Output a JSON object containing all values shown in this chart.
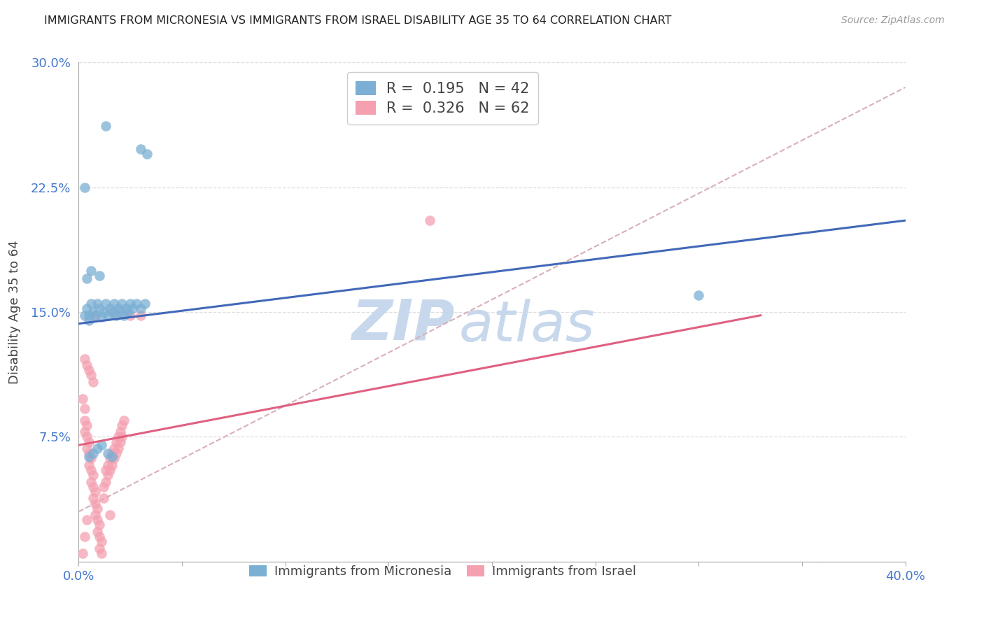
{
  "title": "IMMIGRANTS FROM MICRONESIA VS IMMIGRANTS FROM ISRAEL DISABILITY AGE 35 TO 64 CORRELATION CHART",
  "source": "Source: ZipAtlas.com",
  "ylabel": "Disability Age 35 to 64",
  "xlim": [
    0.0,
    0.4
  ],
  "ylim": [
    0.0,
    0.3
  ],
  "yticks": [
    0.0,
    0.075,
    0.15,
    0.225,
    0.3
  ],
  "ytick_labels": [
    "",
    "7.5%",
    "15.0%",
    "22.5%",
    "30.0%"
  ],
  "xtick_labels": [
    "0.0%",
    "",
    "",
    "",
    "",
    "",
    "",
    "",
    "40.0%"
  ],
  "xticks": [
    0.0,
    0.05,
    0.1,
    0.15,
    0.2,
    0.25,
    0.3,
    0.35,
    0.4
  ],
  "blue_R": 0.195,
  "blue_N": 42,
  "pink_R": 0.326,
  "pink_N": 62,
  "blue_color": "#7BAFD4",
  "pink_color": "#F4A0B0",
  "blue_line_color": "#4169B8",
  "pink_line_color": "#E06080",
  "dashed_line_color": "#D8B0B8",
  "watermark_color": "#C8D8EC",
  "background_color": "#FFFFFF",
  "grid_color": "#DDDDDD",
  "label_color": "#4477CC",
  "axis_color": "#AAAAAA",
  "blue_scatter": [
    [
      0.003,
      0.148
    ],
    [
      0.004,
      0.152
    ],
    [
      0.005,
      0.145
    ],
    [
      0.006,
      0.155
    ],
    [
      0.007,
      0.15
    ],
    [
      0.008,
      0.148
    ],
    [
      0.009,
      0.155
    ],
    [
      0.01,
      0.152
    ],
    [
      0.011,
      0.147
    ],
    [
      0.012,
      0.15
    ],
    [
      0.013,
      0.155
    ],
    [
      0.014,
      0.148
    ],
    [
      0.015,
      0.152
    ],
    [
      0.016,
      0.15
    ],
    [
      0.017,
      0.155
    ],
    [
      0.018,
      0.148
    ],
    [
      0.019,
      0.152
    ],
    [
      0.02,
      0.15
    ],
    [
      0.021,
      0.155
    ],
    [
      0.022,
      0.148
    ],
    [
      0.023,
      0.152
    ],
    [
      0.024,
      0.15
    ],
    [
      0.025,
      0.155
    ],
    [
      0.026,
      0.152
    ],
    [
      0.028,
      0.155
    ],
    [
      0.03,
      0.152
    ],
    [
      0.032,
      0.155
    ],
    [
      0.004,
      0.17
    ],
    [
      0.006,
      0.175
    ],
    [
      0.01,
      0.172
    ],
    [
      0.005,
      0.063
    ],
    [
      0.007,
      0.065
    ],
    [
      0.009,
      0.068
    ],
    [
      0.011,
      0.07
    ],
    [
      0.014,
      0.065
    ],
    [
      0.016,
      0.063
    ],
    [
      0.003,
      0.225
    ],
    [
      0.013,
      0.262
    ],
    [
      0.03,
      0.248
    ],
    [
      0.033,
      0.245
    ],
    [
      0.005,
      0.148
    ],
    [
      0.3,
      0.16
    ]
  ],
  "pink_scatter": [
    [
      0.002,
      0.098
    ],
    [
      0.003,
      0.092
    ],
    [
      0.003,
      0.085
    ],
    [
      0.003,
      0.078
    ],
    [
      0.004,
      0.082
    ],
    [
      0.004,
      0.075
    ],
    [
      0.004,
      0.068
    ],
    [
      0.005,
      0.072
    ],
    [
      0.005,
      0.065
    ],
    [
      0.005,
      0.058
    ],
    [
      0.006,
      0.062
    ],
    [
      0.006,
      0.055
    ],
    [
      0.006,
      0.048
    ],
    [
      0.007,
      0.052
    ],
    [
      0.007,
      0.045
    ],
    [
      0.007,
      0.038
    ],
    [
      0.008,
      0.042
    ],
    [
      0.008,
      0.035
    ],
    [
      0.008,
      0.028
    ],
    [
      0.009,
      0.032
    ],
    [
      0.009,
      0.025
    ],
    [
      0.009,
      0.018
    ],
    [
      0.01,
      0.022
    ],
    [
      0.01,
      0.015
    ],
    [
      0.01,
      0.008
    ],
    [
      0.011,
      0.012
    ],
    [
      0.011,
      0.005
    ],
    [
      0.012,
      0.045
    ],
    [
      0.012,
      0.038
    ],
    [
      0.013,
      0.055
    ],
    [
      0.013,
      0.048
    ],
    [
      0.014,
      0.058
    ],
    [
      0.014,
      0.052
    ],
    [
      0.015,
      0.062
    ],
    [
      0.015,
      0.055
    ],
    [
      0.016,
      0.065
    ],
    [
      0.016,
      0.058
    ],
    [
      0.017,
      0.068
    ],
    [
      0.017,
      0.062
    ],
    [
      0.018,
      0.072
    ],
    [
      0.018,
      0.065
    ],
    [
      0.019,
      0.075
    ],
    [
      0.019,
      0.068
    ],
    [
      0.02,
      0.078
    ],
    [
      0.02,
      0.072
    ],
    [
      0.021,
      0.082
    ],
    [
      0.021,
      0.075
    ],
    [
      0.022,
      0.085
    ],
    [
      0.003,
      0.122
    ],
    [
      0.004,
      0.118
    ],
    [
      0.005,
      0.115
    ],
    [
      0.006,
      0.112
    ],
    [
      0.007,
      0.108
    ],
    [
      0.008,
      0.148
    ],
    [
      0.017,
      0.15
    ],
    [
      0.025,
      0.148
    ],
    [
      0.03,
      0.148
    ],
    [
      0.002,
      0.005
    ],
    [
      0.003,
      0.015
    ],
    [
      0.004,
      0.025
    ],
    [
      0.015,
      0.028
    ],
    [
      0.17,
      0.205
    ]
  ],
  "blue_line": [
    [
      0.0,
      0.143
    ],
    [
      0.4,
      0.205
    ]
  ],
  "pink_line_solid": [
    [
      0.0,
      0.07
    ],
    [
      0.33,
      0.148
    ]
  ],
  "pink_line_dashed": [
    [
      0.0,
      0.03
    ],
    [
      0.4,
      0.285
    ]
  ]
}
